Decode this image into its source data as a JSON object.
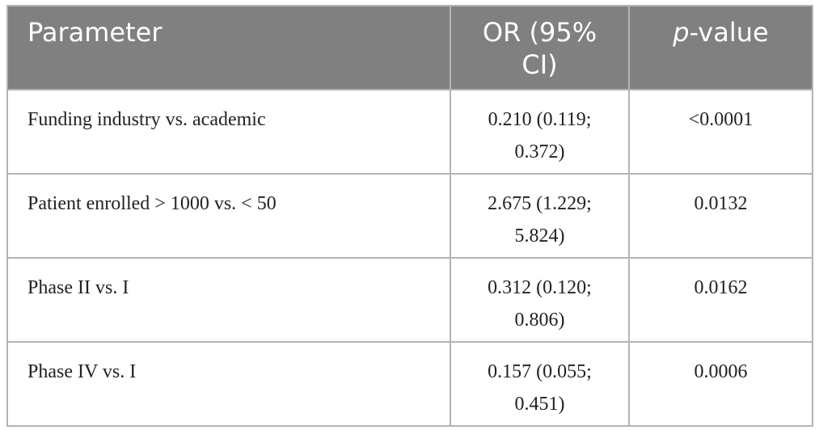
{
  "table": {
    "headers": {
      "parameter": "Parameter",
      "or": "OR (95% CI)",
      "pvalue_italic": "p",
      "pvalue_rest": "-value"
    },
    "rows": [
      {
        "parameter": "Funding industry vs. academic",
        "or": "0.210 (0.119; 0.372)",
        "pvalue": "<0.0001"
      },
      {
        "parameter": "Patient enrolled > 1000 vs. < 50",
        "or": "2.675 (1.229; 5.824)",
        "pvalue": "0.0132"
      },
      {
        "parameter": "Phase II vs. I",
        "or": "0.312 (0.120; 0.806)",
        "pvalue": "0.0162"
      },
      {
        "parameter": "Phase IV vs. I",
        "or": "0.157 (0.055; 0.451)",
        "pvalue": "0.0006"
      }
    ]
  }
}
